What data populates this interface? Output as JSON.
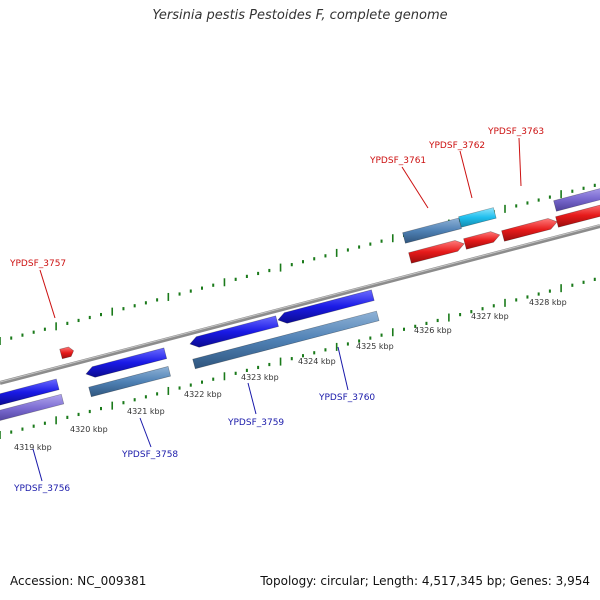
{
  "title": "Yersinia pestis Pestoides F, complete genome",
  "footer": {
    "accession": "Accession: NC_009381",
    "summary": "Topology: circular; Length: 4,517,345 bp; Genes: 3,954"
  },
  "colors": {
    "forward_gene": "#1a1ae6",
    "reverse_gene": "#e61a1a",
    "cds_steel": "#4f81b5",
    "cds_light": "#1fbfee",
    "cds_purple": "#7b6bd1",
    "backbone": "#8c8c8c",
    "tick": "#1a7a1a",
    "label_forward": "#1a1aaa",
    "label_reverse": "#cc1111"
  },
  "scale": {
    "kbp_labels": [
      "4319 kbp",
      "4320 kbp",
      "4321 kbp",
      "4322 kbp",
      "4323 kbp",
      "4324 kbp",
      "4325 kbp",
      "4326 kbp",
      "4327 kbp",
      "4328 kbp"
    ]
  },
  "genes_top": [
    {
      "name": "YPDSF_3757"
    },
    {
      "name": "YPDSF_3761"
    },
    {
      "name": "YPDSF_3762"
    },
    {
      "name": "YPDSF_3763"
    }
  ],
  "genes_bottom": [
    {
      "name": "YPDSF_3756"
    },
    {
      "name": "YPDSF_3758"
    },
    {
      "name": "YPDSF_3759"
    },
    {
      "name": "YPDSF_3760"
    }
  ]
}
